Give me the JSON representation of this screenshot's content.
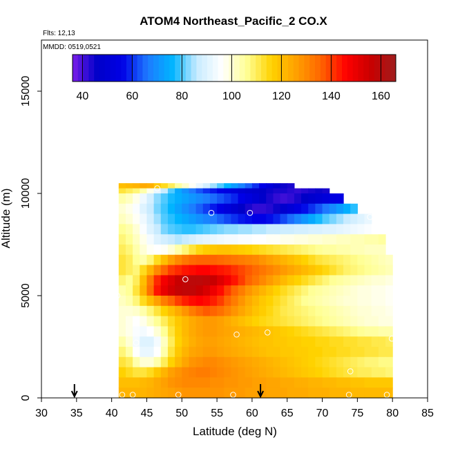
{
  "chart_data": {
    "type": "heatmap",
    "title": "ATOM4 Northeast_Pacific_2 CO.X",
    "subtitle_flights": "Flts: 12,13",
    "subtitle_dates": "MMDD: 0519,0521",
    "xlabel": "Latitude (deg N)",
    "ylabel": "Altitude (m)",
    "xlim": [
      30,
      85
    ],
    "ylim": [
      0,
      17500
    ],
    "xticks": [
      "30",
      "35",
      "40",
      "45",
      "50",
      "55",
      "60",
      "65",
      "70",
      "75",
      "80",
      "85"
    ],
    "yticks": [
      "0",
      "5000",
      "10000",
      "15000"
    ],
    "ytick_values": [
      0,
      5000,
      10000,
      15000
    ],
    "colorbar": {
      "range": [
        36,
        166
      ],
      "tick_values": [
        40,
        60,
        80,
        100,
        120,
        140,
        160
      ],
      "tick_labels": [
        "40",
        "60",
        "80",
        "100",
        "120",
        "140",
        "160"
      ],
      "colors": [
        "#7a1ee8",
        "#0000c8",
        "#0000e6",
        "#1e78ff",
        "#00b4ff",
        "#c8ebff",
        "#ffffff",
        "#ffff96",
        "#ffd200",
        "#ffa000",
        "#ff6400",
        "#ff0000",
        "#c80000",
        "#a01e1e"
      ]
    },
    "arrows_x": [
      34.7,
      61.2
    ],
    "bands": [
      {
        "alt": [
          10250,
          10500
        ],
        "lat": [
          41,
          66
        ],
        "values": [
          120,
          121,
          122,
          124,
          123,
          118,
          114,
          110,
          105,
          101,
          97,
          92,
          88,
          84,
          80,
          76,
          72,
          68,
          64,
          60,
          56,
          52,
          48,
          45,
          44
        ]
      },
      {
        "alt": [
          10000,
          10250
        ],
        "lat": [
          41,
          71
        ],
        "values": [
          112,
          110,
          108,
          104,
          98,
          92,
          86,
          80,
          74,
          70,
          66,
          63,
          60,
          58,
          56,
          54,
          52,
          50,
          48,
          47,
          46,
          45,
          44,
          44,
          43,
          42,
          43,
          44,
          45,
          44
        ]
      },
      {
        "alt": [
          9500,
          10000
        ],
        "lat": [
          41,
          73
        ],
        "values": [
          104,
          102,
          98,
          93,
          88,
          83,
          80,
          77,
          75,
          73,
          71,
          69,
          67,
          65,
          63,
          61,
          59,
          56,
          53,
          50,
          47,
          44,
          42,
          41,
          42,
          44,
          46,
          48,
          50,
          52,
          54,
          55
        ]
      },
      {
        "alt": [
          9000,
          9500
        ],
        "lat": [
          41,
          75
        ],
        "values": [
          100,
          98,
          95,
          90,
          86,
          82,
          79,
          76,
          73,
          70,
          67,
          64,
          61,
          58,
          55,
          52,
          49,
          46,
          44,
          42,
          42,
          43,
          45,
          48,
          51,
          54,
          57,
          60,
          63,
          66,
          69,
          72,
          75,
          78
        ]
      },
      {
        "alt": [
          8500,
          9000
        ],
        "lat": [
          41,
          77
        ],
        "values": [
          102,
          100,
          97,
          93,
          88,
          84,
          80,
          78,
          76,
          74,
          72,
          70,
          68,
          66,
          64,
          62,
          60,
          58,
          57,
          56,
          56,
          57,
          59,
          62,
          65,
          68,
          71,
          74,
          77,
          80,
          82,
          84,
          86,
          88,
          90,
          92
        ]
      },
      {
        "alt": [
          8000,
          8500
        ],
        "lat": [
          41,
          78
        ],
        "values": [
          106,
          104,
          100,
          95,
          90,
          86,
          82,
          80,
          79,
          78,
          78,
          79,
          80,
          81,
          82,
          83,
          83,
          84,
          84,
          85,
          85,
          86,
          86,
          87,
          87,
          88,
          88,
          89,
          89,
          90,
          90,
          91,
          92,
          93,
          94,
          95,
          96
        ]
      },
      {
        "alt": [
          7500,
          8000
        ],
        "lat": [
          41,
          79
        ],
        "values": [
          108,
          106,
          102,
          98,
          94,
          90,
          88,
          86,
          85,
          86,
          88,
          90,
          91,
          92,
          93,
          94,
          94,
          95,
          95,
          96,
          96,
          97,
          97,
          98,
          98,
          99,
          99,
          100,
          100,
          101,
          101,
          102,
          102,
          103,
          103,
          104,
          104,
          105
        ]
      },
      {
        "alt": [
          7000,
          7500
        ],
        "lat": [
          41,
          79
        ],
        "values": [
          110,
          108,
          104,
          100,
          97,
          96,
          97,
          100,
          104,
          108,
          112,
          115,
          117,
          118,
          119,
          119,
          118,
          117,
          116,
          115,
          114,
          113,
          112,
          111,
          110,
          109,
          108,
          107,
          106,
          105,
          105,
          104,
          104,
          103,
          103,
          102,
          102,
          102
        ]
      },
      {
        "alt": [
          6500,
          7000
        ],
        "lat": [
          41,
          80
        ],
        "values": [
          112,
          110,
          106,
          104,
          108,
          114,
          120,
          126,
          130,
          133,
          135,
          136,
          136,
          136,
          135,
          134,
          133,
          132,
          131,
          130,
          128,
          126,
          124,
          122,
          120,
          118,
          116,
          114,
          112,
          111,
          110,
          109,
          108,
          107,
          106,
          105,
          104,
          103,
          102
        ]
      },
      {
        "alt": [
          6000,
          6500
        ],
        "lat": [
          41,
          80
        ],
        "values": [
          112,
          110,
          108,
          114,
          122,
          130,
          136,
          140,
          142,
          144,
          145,
          146,
          146,
          145,
          144,
          143,
          141,
          139,
          137,
          135,
          133,
          131,
          129,
          127,
          125,
          123,
          121,
          119,
          117,
          115,
          113,
          111,
          109,
          108,
          107,
          106,
          105,
          104,
          103
        ]
      },
      {
        "alt": [
          5500,
          6000
        ],
        "lat": [
          41,
          80
        ],
        "values": [
          108,
          106,
          110,
          120,
          132,
          142,
          148,
          152,
          156,
          158,
          159,
          159,
          158,
          156,
          152,
          148,
          144,
          140,
          136,
          133,
          130,
          127,
          124,
          121,
          118,
          116,
          114,
          112,
          110,
          108,
          106,
          105,
          104,
          103,
          102,
          101,
          100,
          100,
          99
        ]
      },
      {
        "alt": [
          5000,
          5500
        ],
        "lat": [
          41,
          80
        ],
        "values": [
          104,
          106,
          112,
          122,
          134,
          144,
          150,
          154,
          157,
          158,
          158,
          156,
          153,
          149,
          145,
          140,
          136,
          132,
          128,
          125,
          122,
          119,
          116,
          114,
          112,
          110,
          108,
          106,
          105,
          104,
          103,
          102,
          101,
          100,
          99,
          99,
          98,
          98,
          97
        ]
      },
      {
        "alt": [
          4500,
          5000
        ],
        "lat": [
          41,
          80
        ],
        "values": [
          102,
          104,
          108,
          114,
          120,
          126,
          132,
          136,
          140,
          143,
          145,
          146,
          145,
          143,
          140,
          136,
          132,
          128,
          124,
          121,
          118,
          116,
          114,
          112,
          110,
          108,
          106,
          105,
          104,
          103,
          102,
          101,
          100,
          100,
          99,
          99,
          98,
          98,
          97
        ]
      },
      {
        "alt": [
          4000,
          4500
        ],
        "lat": [
          41,
          80
        ],
        "values": [
          100,
          100,
          101,
          104,
          108,
          112,
          116,
          120,
          124,
          128,
          132,
          135,
          137,
          136,
          134,
          131,
          128,
          125,
          122,
          119,
          117,
          115,
          113,
          111,
          110,
          109,
          108,
          107,
          106,
          105,
          104,
          103,
          102,
          101,
          100,
          100,
          99,
          99,
          98
        ]
      },
      {
        "alt": [
          3500,
          4000
        ],
        "lat": [
          41,
          80
        ],
        "values": [
          100,
          98,
          96,
          98,
          102,
          106,
          110,
          114,
          118,
          121,
          124,
          126,
          127,
          127,
          126,
          124,
          122,
          120,
          118,
          116,
          115,
          114,
          113,
          112,
          111,
          110,
          109,
          108,
          107,
          106,
          105,
          104,
          103,
          102,
          101,
          100,
          100,
          99,
          99
        ]
      },
      {
        "alt": [
          3000,
          3500
        ],
        "lat": [
          41,
          80
        ],
        "values": [
          100,
          98,
          95,
          94,
          96,
          100,
          106,
          112,
          117,
          121,
          124,
          126,
          127,
          127,
          126,
          125,
          124,
          123,
          122,
          121,
          120,
          119,
          118,
          117,
          116,
          115,
          114,
          113,
          112,
          111,
          110,
          109,
          108,
          107,
          106,
          105,
          105,
          104,
          104
        ]
      },
      {
        "alt": [
          2500,
          3000
        ],
        "lat": [
          41,
          80
        ],
        "values": [
          104,
          100,
          94,
          90,
          90,
          94,
          102,
          110,
          116,
          120,
          123,
          125,
          126,
          126,
          125,
          124,
          123,
          122,
          121,
          120,
          119,
          119,
          118,
          118,
          117,
          117,
          116,
          116,
          115,
          115,
          114,
          114,
          113,
          113,
          112,
          112,
          111,
          111,
          110
        ]
      },
      {
        "alt": [
          2000,
          2500
        ],
        "lat": [
          41,
          80
        ],
        "values": [
          108,
          104,
          96,
          92,
          92,
          96,
          104,
          112,
          118,
          122,
          125,
          126,
          127,
          127,
          126,
          125,
          124,
          123,
          122,
          121,
          120,
          119,
          119,
          118,
          118,
          117,
          117,
          116,
          116,
          115,
          115,
          114,
          114,
          113,
          113,
          112,
          112,
          111,
          111
        ]
      },
      {
        "alt": [
          1500,
          2000
        ],
        "lat": [
          41,
          80
        ],
        "values": [
          112,
          110,
          104,
          100,
          100,
          104,
          110,
          116,
          121,
          125,
          128,
          129,
          130,
          130,
          129,
          128,
          127,
          126,
          125,
          124,
          123,
          122,
          121,
          120,
          119,
          118,
          117,
          116,
          115,
          114,
          113,
          112,
          111,
          110,
          109,
          108,
          108,
          107,
          107
        ]
      },
      {
        "alt": [
          1000,
          1500
        ],
        "lat": [
          41,
          80
        ],
        "values": [
          116,
          114,
          112,
          112,
          114,
          118,
          122,
          126,
          128,
          130,
          131,
          132,
          132,
          131,
          130,
          129,
          128,
          127,
          126,
          125,
          124,
          123,
          122,
          121,
          120,
          119,
          118,
          117,
          116,
          115,
          114,
          113,
          112,
          111,
          110,
          110,
          109,
          109,
          108
        ]
      },
      {
        "alt": [
          500,
          1000
        ],
        "lat": [
          41,
          80
        ],
        "values": [
          120,
          120,
          120,
          121,
          122,
          124,
          126,
          128,
          129,
          130,
          130,
          130,
          130,
          129,
          129,
          128,
          128,
          127,
          127,
          126,
          126,
          125,
          125,
          124,
          124,
          123,
          123,
          122,
          122,
          121,
          121,
          120,
          120,
          119,
          119,
          118,
          118,
          118,
          118
        ]
      },
      {
        "alt": [
          0,
          500
        ],
        "lat": [
          41,
          80
        ],
        "values": [
          122,
          122,
          122,
          122,
          123,
          124,
          125,
          126,
          127,
          128,
          128,
          128,
          128,
          128,
          128,
          127,
          127,
          127,
          126,
          126,
          126,
          125,
          125,
          125,
          124,
          124,
          124,
          123,
          123,
          123,
          122,
          122,
          122,
          121,
          121,
          121,
          121,
          121,
          121
        ]
      }
    ],
    "sample_points": [
      {
        "x": 69.8,
        "y": 10750
      },
      {
        "x": 46.5,
        "y": 10250
      },
      {
        "x": 54.2,
        "y": 9050
      },
      {
        "x": 59.7,
        "y": 9050
      },
      {
        "x": 76.8,
        "y": 8850
      },
      {
        "x": 80.5,
        "y": 6050
      },
      {
        "x": 50.5,
        "y": 5800
      },
      {
        "x": 40.8,
        "y": 5000
      },
      {
        "x": 57.8,
        "y": 3100
      },
      {
        "x": 62.2,
        "y": 3200
      },
      {
        "x": 43.5,
        "y": 2700
      },
      {
        "x": 79.9,
        "y": 2900
      },
      {
        "x": 74.0,
        "y": 1300
      },
      {
        "x": 41.5,
        "y": 150
      },
      {
        "x": 43.0,
        "y": 150
      },
      {
        "x": 49.5,
        "y": 150
      },
      {
        "x": 57.3,
        "y": 150
      },
      {
        "x": 73.8,
        "y": 150
      },
      {
        "x": 79.2,
        "y": 150
      }
    ]
  }
}
